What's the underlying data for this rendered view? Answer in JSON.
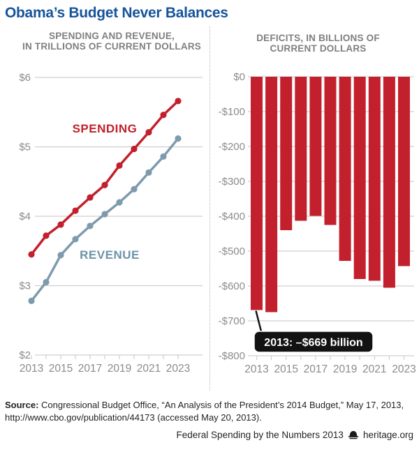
{
  "page": {
    "title": "Obama’s Budget Never Balances",
    "source_label": "Source:",
    "source_text": " Congressional Budget Office, “An Analysis of the President’s 2014 Budget,” May 17, 2013, http://www.cbo.gov/publication/44173 (accessed May 20, 2013).",
    "footer_publication": "Federal Spending by the Numbers 2013",
    "footer_site": "heritage.org",
    "footer_icon": "heritage-liberty-bell-icon"
  },
  "colors": {
    "title_blue": "#17549B",
    "subtitle_gray": "#7F7F7F",
    "axis_label_gray": "#8B8B8B",
    "gridline_gray": "#CFCFCF",
    "spending_red": "#C2202C",
    "revenue_blue": "#7E9BAD",
    "revenue_label_blue": "#6E93A8",
    "callout_bg": "#121212",
    "callout_text": "#FFFFFF",
    "text_dark": "#231F20"
  },
  "chart_data": [
    {
      "type": "line",
      "title_line1": "SPENDING AND REVENUE,",
      "title_line2": "IN TRILLIONS OF CURRENT DOLLARS",
      "x": [
        2013,
        2014,
        2015,
        2016,
        2017,
        2018,
        2019,
        2020,
        2021,
        2022,
        2023
      ],
      "series": [
        {
          "name": "SPENDING",
          "color": "#C2202C",
          "values": [
            3.45,
            3.72,
            3.88,
            4.08,
            4.27,
            4.45,
            4.73,
            4.97,
            5.21,
            5.46,
            5.66
          ]
        },
        {
          "name": "REVENUE",
          "color": "#7E9BAD",
          "values": [
            2.78,
            3.05,
            3.44,
            3.67,
            3.86,
            4.03,
            4.2,
            4.39,
            4.63,
            4.86,
            5.12
          ]
        }
      ],
      "ylim": [
        2,
        6
      ],
      "ytick_labels": [
        "$6",
        "$5",
        "$4",
        "$3",
        "$2"
      ],
      "xtick_labels": [
        "2013",
        "2015",
        "2017",
        "2019",
        "2021",
        "2023"
      ],
      "grid": true,
      "legend_position": "inline-labels"
    },
    {
      "type": "bar",
      "title_line1": "DEFICITS, IN BILLIONS OF",
      "title_line2": "CURRENT DOLLARS",
      "categories": [
        2013,
        2014,
        2015,
        2016,
        2017,
        2018,
        2019,
        2020,
        2021,
        2022,
        2023
      ],
      "values": [
        -669,
        -675,
        -440,
        -413,
        -399,
        -425,
        -528,
        -580,
        -585,
        -605,
        -543
      ],
      "bar_color": "#C2202C",
      "ylim": [
        -800,
        0
      ],
      "ytick_labels": [
        "$0",
        "-$100",
        "-$200",
        "-$300",
        "-$400",
        "-$500",
        "-$600",
        "-$700",
        "-$800"
      ],
      "xtick_labels": [
        "2013",
        "2015",
        "2017",
        "2019",
        "2021",
        "2023"
      ],
      "grid": true,
      "annotation": {
        "text": "2013: –$669 billion",
        "target_year": 2013,
        "target_value": -669
      }
    }
  ]
}
